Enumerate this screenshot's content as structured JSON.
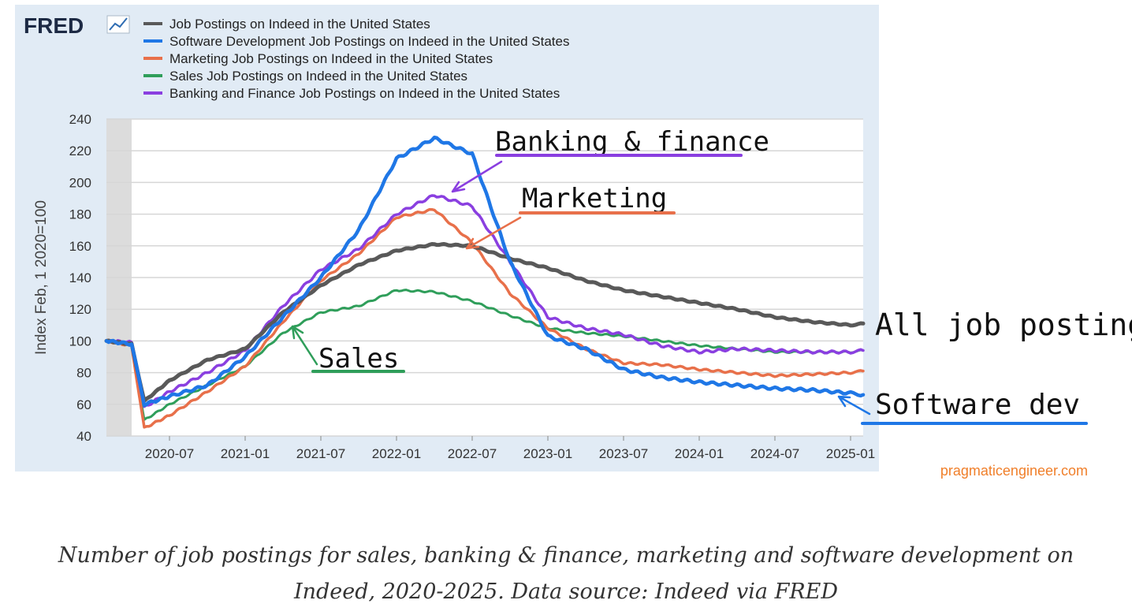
{
  "brand": {
    "logo": "FRED"
  },
  "watermark": "pragmaticengineer.com",
  "caption": "Number of job postings for sales, banking & finance, marketing and software development on Indeed, 2020-2025. Data source: Indeed via FRED",
  "colors": {
    "all": "#595959",
    "software": "#1f77e6",
    "marketing": "#e8704a",
    "sales": "#2f9e5a",
    "banking": "#8a3fe0",
    "watermark": "#f07f2a"
  },
  "chart_data": {
    "type": "line",
    "title": "",
    "xlabel": "",
    "ylabel": "Index Feb, 1 2020=100",
    "ylim": [
      40,
      240
    ],
    "yticks": [
      40,
      60,
      80,
      100,
      120,
      140,
      160,
      180,
      200,
      220,
      240
    ],
    "xticks": [
      "2020-07",
      "2021-01",
      "2021-07",
      "2022-01",
      "2022-07",
      "2023-01",
      "2023-07",
      "2024-01",
      "2024-07",
      "2025-01"
    ],
    "x_start": "2020-02",
    "x_end": "2025-02",
    "recession_shading": [
      "2020-02",
      "2020-04"
    ],
    "x": [
      "2020-02",
      "2020-04",
      "2020-05",
      "2020-07",
      "2020-10",
      "2021-01",
      "2021-04",
      "2021-07",
      "2021-10",
      "2022-01",
      "2022-04",
      "2022-07",
      "2022-10",
      "2023-01",
      "2023-04",
      "2023-07",
      "2023-10",
      "2024-01",
      "2024-04",
      "2024-07",
      "2024-10",
      "2025-01",
      "2025-02"
    ],
    "series": [
      {
        "key": "all",
        "name": "Job Postings on Indeed in the United States",
        "values": [
          100,
          98,
          62,
          75,
          88,
          95,
          118,
          135,
          148,
          157,
          161,
          160,
          152,
          146,
          138,
          132,
          128,
          124,
          120,
          115,
          112,
          110,
          111
        ]
      },
      {
        "key": "software",
        "name": "Software Development Job Postings on Indeed in the United States",
        "values": [
          100,
          98,
          60,
          65,
          72,
          90,
          115,
          140,
          170,
          215,
          228,
          218,
          150,
          103,
          95,
          82,
          77,
          74,
          72,
          70,
          69,
          67,
          66
        ]
      },
      {
        "key": "marketing",
        "name": "Marketing Job Postings on Indeed in the United States",
        "values": [
          100,
          97,
          45,
          53,
          68,
          84,
          112,
          138,
          155,
          178,
          183,
          162,
          130,
          108,
          95,
          86,
          85,
          82,
          80,
          78,
          79,
          80,
          81
        ]
      },
      {
        "key": "sales",
        "name": "Sales Job Postings on Indeed in the United States",
        "values": [
          100,
          97,
          50,
          60,
          72,
          84,
          105,
          118,
          122,
          132,
          131,
          125,
          116,
          108,
          105,
          103,
          100,
          97,
          95,
          93,
          93,
          93,
          94
        ]
      },
      {
        "key": "banking",
        "name": "Banking and Finance Job Postings on Indeed in the United States",
        "values": [
          100,
          99,
          58,
          68,
          80,
          94,
          122,
          145,
          158,
          180,
          192,
          185,
          150,
          115,
          108,
          104,
          97,
          93,
          95,
          94,
          93,
          93,
          94
        ]
      }
    ],
    "annotations": [
      {
        "text": "Banking & finance",
        "series": "banking"
      },
      {
        "text": "Marketing",
        "series": "marketing"
      },
      {
        "text": "Sales",
        "series": "sales"
      },
      {
        "text": "All job postings",
        "series": "all"
      },
      {
        "text": "Software dev",
        "series": "software"
      }
    ]
  }
}
